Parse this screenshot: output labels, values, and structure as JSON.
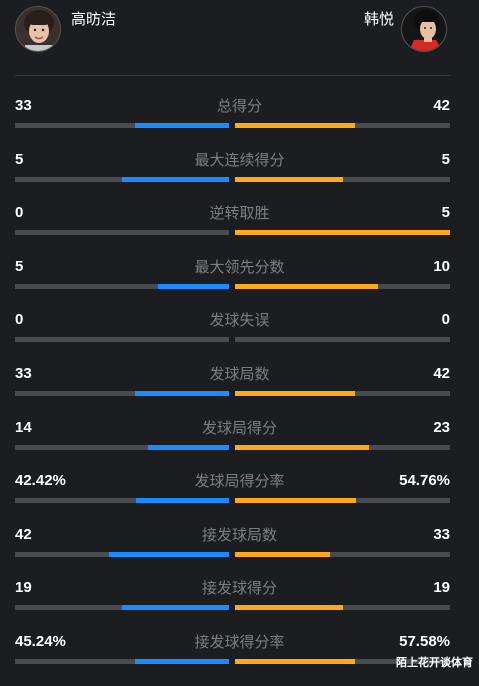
{
  "players": {
    "left": {
      "name": "高昉洁"
    },
    "right": {
      "name": "韩悦"
    }
  },
  "colors": {
    "left_bar": "#1a8cff",
    "right_bar": "#ffa81a",
    "track": "#4a4b50"
  },
  "stats": [
    {
      "label": "总得分",
      "left": "33",
      "right": "42",
      "left_share": 0.44,
      "right_share": 0.56
    },
    {
      "label": "最大连续得分",
      "left": "5",
      "right": "5",
      "left_share": 0.5,
      "right_share": 0.5
    },
    {
      "label": "逆转取胜",
      "left": "0",
      "right": "5",
      "left_share": 0.0,
      "right_share": 1.0
    },
    {
      "label": "最大领先分数",
      "left": "5",
      "right": "10",
      "left_share": 0.333,
      "right_share": 0.667
    },
    {
      "label": "发球失误",
      "left": "0",
      "right": "0",
      "left_share": 0.0,
      "right_share": 0.0
    },
    {
      "label": "发球局数",
      "left": "33",
      "right": "42",
      "left_share": 0.44,
      "right_share": 0.56
    },
    {
      "label": "发球局得分",
      "left": "14",
      "right": "23",
      "left_share": 0.378,
      "right_share": 0.622
    },
    {
      "label": "发球局得分率",
      "left": "42.42%",
      "right": "54.76%",
      "left_share": 0.4366,
      "right_share": 0.5634
    },
    {
      "label": "接发球局数",
      "left": "42",
      "right": "33",
      "left_share": 0.56,
      "right_share": 0.44
    },
    {
      "label": "接发球得分",
      "left": "19",
      "right": "19",
      "left_share": 0.5,
      "right_share": 0.5
    },
    {
      "label": "接发球得分率",
      "left": "45.24%",
      "right": "57.58%",
      "left_share": 0.44,
      "right_share": 0.56
    }
  ],
  "watermark": "陌上花开谈体育"
}
